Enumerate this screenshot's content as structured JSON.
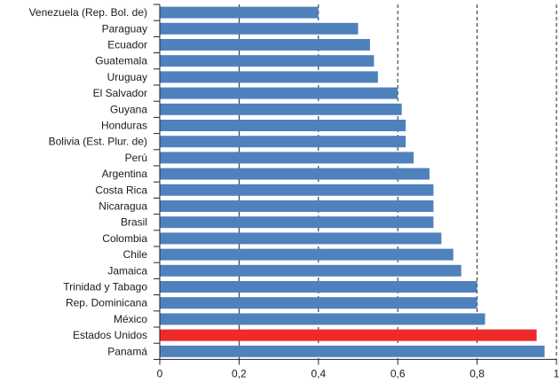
{
  "chart_data": {
    "type": "bar",
    "orientation": "horizontal",
    "title": "",
    "xlabel": "",
    "ylabel": "",
    "categories": [
      "Venezuela (Rep. Bol. de)",
      "Paraguay",
      "Ecuador",
      "Guatemala",
      "Uruguay",
      "El Salvador",
      "Guyana",
      "Honduras",
      "Bolivia (Est. Plur. de)",
      "Perú",
      "Argentina",
      "Costa Rica",
      "Nicaragua",
      "Brasil",
      "Colombia",
      "Chile",
      "Jamaica",
      "Trinidad y Tabago",
      "Rep. Dominicana",
      "México",
      "Estados Unidos",
      "Panamá"
    ],
    "values": [
      0.4,
      0.5,
      0.53,
      0.54,
      0.55,
      0.6,
      0.61,
      0.62,
      0.62,
      0.64,
      0.68,
      0.69,
      0.69,
      0.69,
      0.71,
      0.74,
      0.76,
      0.8,
      0.8,
      0.82,
      0.95,
      0.97
    ],
    "xlim": [
      0,
      1
    ],
    "x_ticks": [
      0,
      0.2,
      0.4,
      0.6,
      0.8,
      1
    ],
    "x_tick_labels": [
      "0",
      "0,2",
      "0,4",
      "0,6",
      "0,8",
      "1"
    ],
    "grid": "vertical dashed at 0,2 / 0,4 / 0,6 / 0,8 / 1",
    "legend": "none",
    "colors": {
      "default": "#4f81bd",
      "highlight": "#ee2a2a"
    },
    "highlight_category": "Estados Unidos"
  }
}
